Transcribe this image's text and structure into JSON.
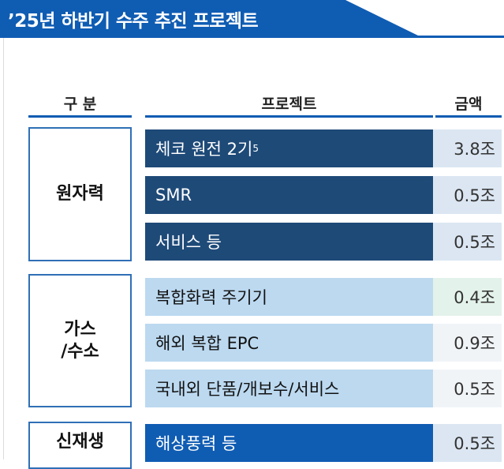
{
  "title": "’25년 하반기 수주 추진 프로젝트",
  "columns": {
    "category": "구 분",
    "project": "프로젝트",
    "amount": "금액"
  },
  "groups": [
    {
      "category": "원자력",
      "rows": [
        {
          "project": "체코 원전 2기",
          "sup": "5",
          "amount": "3.8조"
        },
        {
          "project": "SMR",
          "amount": "0.5조"
        },
        {
          "project": "서비스 등",
          "amount": "0.5조"
        }
      ]
    },
    {
      "category_line1": "가스",
      "category_line2": "/수소",
      "rows": [
        {
          "project": "복합화력 주기기",
          "amount": "0.4조"
        },
        {
          "project": "해외 복합 EPC",
          "amount": "0.9조"
        },
        {
          "project": "국내외 단품/개보수/서비스",
          "amount": "0.5조"
        }
      ]
    },
    {
      "category": "신재생",
      "rows": [
        {
          "project": "해상풍력 등",
          "amount": "0.5조"
        }
      ]
    }
  ],
  "colors": {
    "accent": "#0f5cb3",
    "dark_row": "#1e4a78",
    "light_row": "#bcd9f0",
    "green_amount": "#e3f2ea"
  }
}
